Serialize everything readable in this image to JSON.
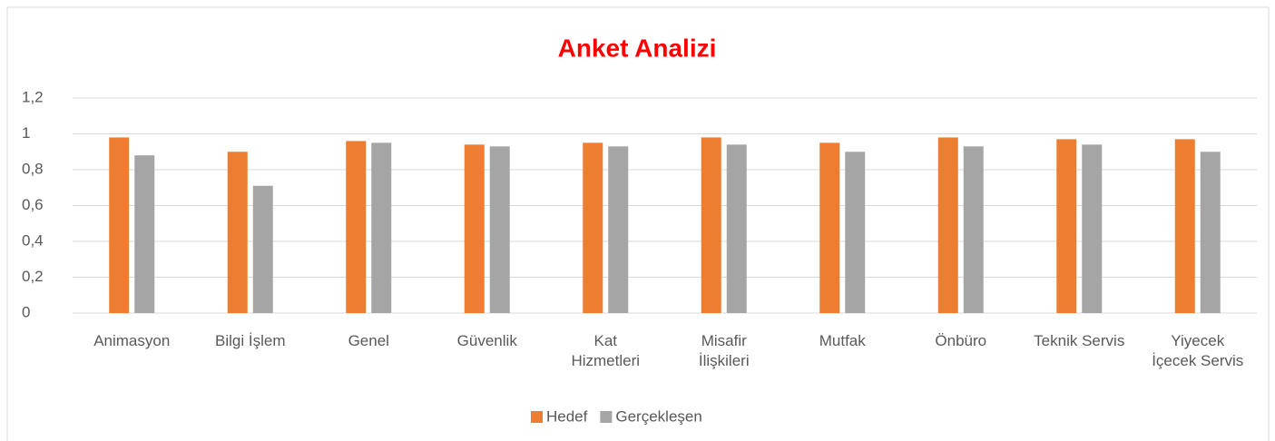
{
  "chart_data": {
    "type": "bar",
    "title": "Anket Analizi",
    "categories": [
      "Animasyon",
      "Bilgi İşlem",
      "Genel",
      "Güvenlik",
      "Kat\nHizmetleri",
      "Misafir\nİlişkileri",
      "Mutfak",
      "Önbüro",
      "Teknik Servis",
      "Yiyecek\nİçecek Servis"
    ],
    "series": [
      {
        "name": "Hedef",
        "color": "#ed7d31",
        "values": [
          0.98,
          0.9,
          0.96,
          0.94,
          0.95,
          0.98,
          0.95,
          0.98,
          0.97,
          0.97
        ]
      },
      {
        "name": "Gerçekleşen",
        "color": "#a5a5a5",
        "values": [
          0.88,
          0.71,
          0.95,
          0.93,
          0.93,
          0.94,
          0.9,
          0.93,
          0.94,
          0.9
        ]
      }
    ],
    "ylim": [
      0,
      1.2
    ],
    "yticks": [
      0,
      {
        "value": 0.2,
        "label": "0,2"
      },
      {
        "value": 0.4,
        "label": "0,4"
      },
      {
        "value": 0.6,
        "label": "0,6"
      },
      {
        "value": 0.8,
        "label": "0,8"
      },
      1,
      {
        "value": 1.2,
        "label": "1,2"
      }
    ],
    "grid": true,
    "legend": "bottom"
  }
}
